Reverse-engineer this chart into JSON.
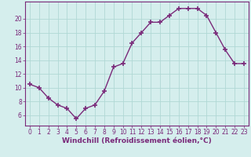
{
  "x": [
    0,
    1,
    2,
    3,
    4,
    5,
    6,
    7,
    8,
    9,
    10,
    11,
    12,
    13,
    14,
    15,
    16,
    17,
    18,
    19,
    20,
    21,
    22,
    23
  ],
  "y": [
    10.5,
    10.0,
    8.5,
    7.5,
    7.0,
    5.5,
    7.0,
    7.5,
    9.5,
    13.0,
    13.5,
    16.5,
    18.0,
    19.5,
    19.5,
    20.5,
    21.5,
    21.5,
    21.5,
    20.5,
    18.0,
    15.5,
    13.5,
    13.5
  ],
  "line_color": "#7a2a7a",
  "marker": "+",
  "markersize": 4,
  "markeredgewidth": 1.2,
  "linewidth": 1.0,
  "xlabel": "Windchill (Refroidissement éolien,°C)",
  "xlabel_fontsize": 6.5,
  "bg_color": "#d5eeed",
  "grid_color": "#b0d8d5",
  "xlim": [
    -0.5,
    23.5
  ],
  "ylim": [
    4.5,
    22.5
  ],
  "yticks": [
    6,
    8,
    10,
    12,
    14,
    16,
    18,
    20
  ],
  "xticks": [
    0,
    1,
    2,
    3,
    4,
    5,
    6,
    7,
    8,
    9,
    10,
    11,
    12,
    13,
    14,
    15,
    16,
    17,
    18,
    19,
    20,
    21,
    22,
    23
  ],
  "tick_fontsize": 5.5,
  "tick_color": "#7a2a7a",
  "label_color": "#7a2a7a",
  "spine_color": "#7a2a7a"
}
